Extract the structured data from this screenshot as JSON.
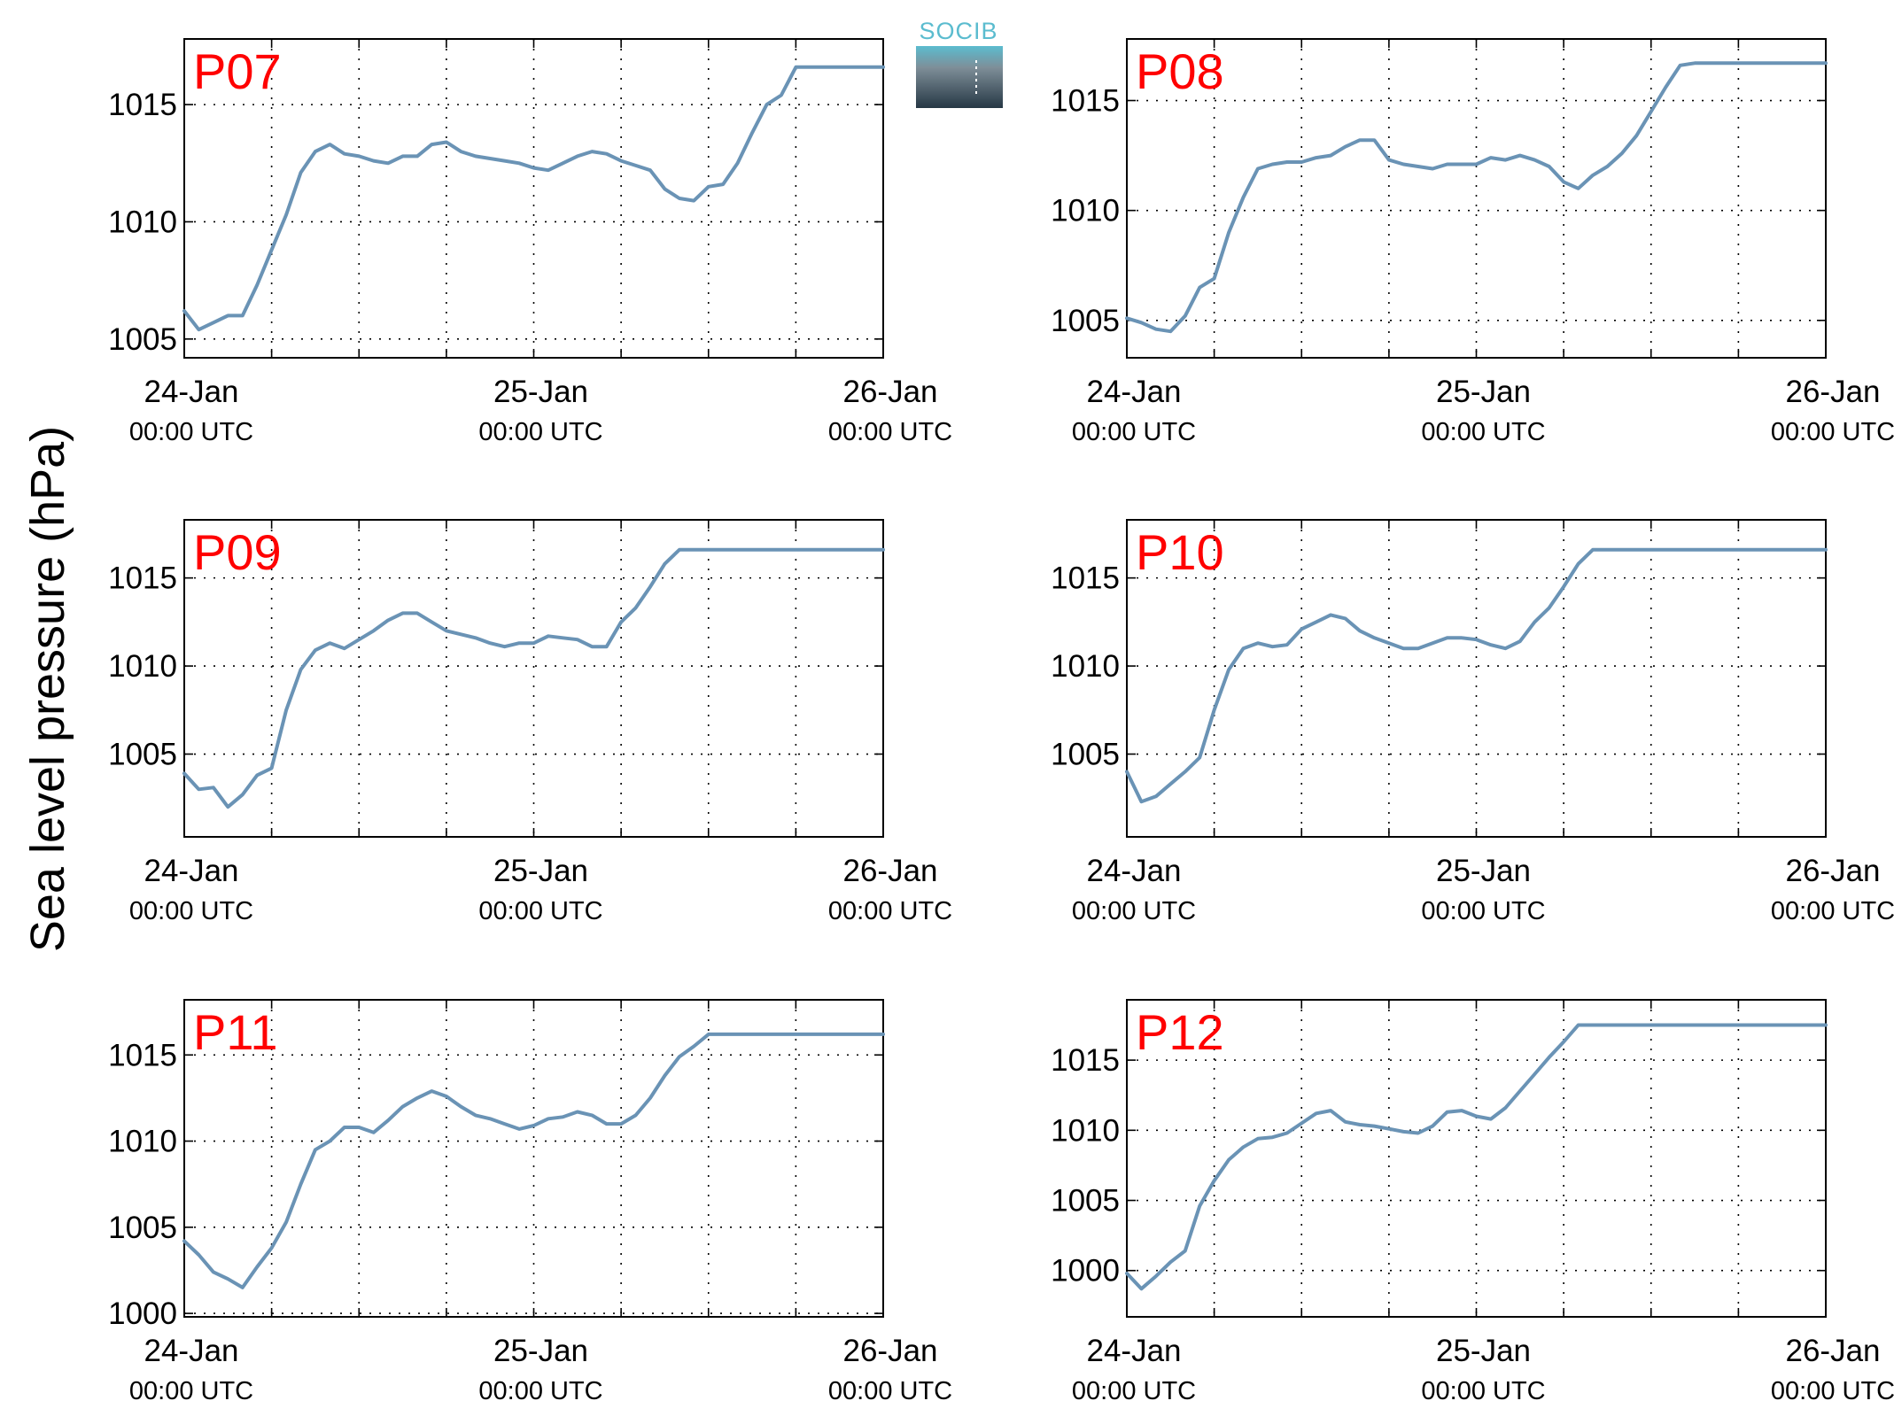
{
  "ylabel": "Sea level pressure (hPa)",
  "logo": {
    "text": "SOCIB",
    "color": "#5bbccf"
  },
  "colors": {
    "line": "#6a93b5",
    "label": "#ff0000",
    "grid": "#000000"
  },
  "x_ticks": [
    {
      "main": "24-Jan",
      "sub": "00:00 UTC"
    },
    {
      "main": "25-Jan",
      "sub": "00:00 UTC"
    },
    {
      "main": "26-Jan",
      "sub": "00:00 UTC"
    }
  ],
  "chart_data": [
    {
      "type": "line",
      "label": "P07",
      "xlim": [
        0,
        48
      ],
      "ylim": [
        1004.2,
        1017.8
      ],
      "yticks": [
        1005,
        1010,
        1015
      ],
      "x": [
        0,
        1,
        2,
        3,
        4,
        5,
        6,
        7,
        8,
        9,
        10,
        11,
        12,
        13,
        14,
        15,
        16,
        17,
        18,
        19,
        20,
        21,
        22,
        23,
        24,
        25,
        26,
        27,
        28,
        29,
        30,
        31,
        32,
        33,
        34,
        35,
        36,
        37,
        38,
        39,
        40,
        41,
        42,
        43,
        44,
        45,
        46,
        47,
        48
      ],
      "y": [
        1006.2,
        1005.4,
        1005.7,
        1006.0,
        1006.0,
        1007.3,
        1008.8,
        1010.3,
        1012.1,
        1013.0,
        1013.3,
        1012.9,
        1012.8,
        1012.6,
        1012.5,
        1012.8,
        1012.8,
        1013.3,
        1013.4,
        1013.0,
        1012.8,
        1012.7,
        1012.6,
        1012.5,
        1012.3,
        1012.2,
        1012.5,
        1012.8,
        1013.0,
        1012.9,
        1012.6,
        1012.4,
        1012.2,
        1011.4,
        1011.0,
        1010.9,
        1011.5,
        1011.6,
        1012.5,
        1013.8,
        1015.0,
        1015.4,
        1016.6,
        1016.6,
        1016.6,
        1016.6,
        1016.6,
        1016.6,
        1016.6
      ]
    },
    {
      "type": "line",
      "label": "P08",
      "xlim": [
        0,
        48
      ],
      "ylim": [
        1003.3,
        1017.8
      ],
      "yticks": [
        1005,
        1010,
        1015
      ],
      "x": [
        0,
        1,
        2,
        3,
        4,
        5,
        6,
        7,
        8,
        9,
        10,
        11,
        12,
        13,
        14,
        15,
        16,
        17,
        18,
        19,
        20,
        21,
        22,
        23,
        24,
        25,
        26,
        27,
        28,
        29,
        30,
        31,
        32,
        33,
        34,
        35,
        36,
        37,
        38,
        39,
        40,
        41,
        42,
        43,
        44,
        45,
        46,
        47,
        48
      ],
      "y": [
        1005.1,
        1004.9,
        1004.6,
        1004.5,
        1005.2,
        1006.5,
        1006.9,
        1009.0,
        1010.6,
        1011.9,
        1012.1,
        1012.2,
        1012.2,
        1012.4,
        1012.5,
        1012.9,
        1013.2,
        1013.2,
        1012.3,
        1012.1,
        1012.0,
        1011.9,
        1012.1,
        1012.1,
        1012.1,
        1012.4,
        1012.3,
        1012.5,
        1012.3,
        1012.0,
        1011.3,
        1011.0,
        1011.6,
        1012.0,
        1012.6,
        1013.4,
        1014.5,
        1015.6,
        1016.6,
        1016.7,
        1016.7,
        1016.7,
        1016.7,
        1016.7,
        1016.7,
        1016.7,
        1016.7,
        1016.7,
        1016.7
      ]
    },
    {
      "type": "line",
      "label": "P09",
      "xlim": [
        0,
        48
      ],
      "ylim": [
        1000.3,
        1018.3
      ],
      "yticks": [
        1005,
        1010,
        1015
      ],
      "x": [
        0,
        1,
        2,
        3,
        4,
        5,
        6,
        7,
        8,
        9,
        10,
        11,
        12,
        13,
        14,
        15,
        16,
        17,
        18,
        19,
        20,
        21,
        22,
        23,
        24,
        25,
        26,
        27,
        28,
        29,
        30,
        31,
        32,
        33,
        34,
        35,
        36,
        37,
        38,
        39,
        40,
        41,
        42,
        43,
        44,
        45,
        46,
        47,
        48
      ],
      "y": [
        1003.9,
        1003.0,
        1003.1,
        1002.0,
        1002.7,
        1003.8,
        1004.2,
        1007.5,
        1009.8,
        1010.9,
        1011.3,
        1011.0,
        1011.5,
        1012.0,
        1012.6,
        1013.0,
        1013.0,
        1012.5,
        1012.0,
        1011.8,
        1011.6,
        1011.3,
        1011.1,
        1011.3,
        1011.3,
        1011.7,
        1011.6,
        1011.5,
        1011.1,
        1011.1,
        1012.5,
        1013.3,
        1014.5,
        1015.8,
        1016.6,
        1016.6,
        1016.6,
        1016.6,
        1016.6,
        1016.6,
        1016.6,
        1016.6,
        1016.6,
        1016.6,
        1016.6,
        1016.6,
        1016.6,
        1016.6,
        1016.6
      ]
    },
    {
      "type": "line",
      "label": "P10",
      "xlim": [
        0,
        48
      ],
      "ylim": [
        1000.3,
        1018.3
      ],
      "yticks": [
        1005,
        1010,
        1015
      ],
      "x": [
        0,
        1,
        2,
        3,
        4,
        5,
        6,
        7,
        8,
        9,
        10,
        11,
        12,
        13,
        14,
        15,
        16,
        17,
        18,
        19,
        20,
        21,
        22,
        23,
        24,
        25,
        26,
        27,
        28,
        29,
        30,
        31,
        32,
        33,
        34,
        35,
        36,
        37,
        38,
        39,
        40,
        41,
        42,
        43,
        44,
        45,
        46,
        47,
        48
      ],
      "y": [
        1004.0,
        1002.3,
        1002.6,
        1003.3,
        1004.0,
        1004.8,
        1007.5,
        1009.8,
        1011.0,
        1011.3,
        1011.1,
        1011.2,
        1012.1,
        1012.5,
        1012.9,
        1012.7,
        1012.0,
        1011.6,
        1011.3,
        1011.0,
        1011.0,
        1011.3,
        1011.6,
        1011.6,
        1011.5,
        1011.2,
        1011.0,
        1011.4,
        1012.5,
        1013.3,
        1014.5,
        1015.8,
        1016.6,
        1016.6,
        1016.6,
        1016.6,
        1016.6,
        1016.6,
        1016.6,
        1016.6,
        1016.6,
        1016.6,
        1016.6,
        1016.6,
        1016.6,
        1016.6,
        1016.6,
        1016.6,
        1016.6
      ]
    },
    {
      "type": "line",
      "label": "P11",
      "xlim": [
        0,
        48
      ],
      "ylim": [
        999.8,
        1018.2
      ],
      "yticks": [
        1000,
        1005,
        1010,
        1015
      ],
      "x": [
        0,
        1,
        2,
        3,
        4,
        5,
        6,
        7,
        8,
        9,
        10,
        11,
        12,
        13,
        14,
        15,
        16,
        17,
        18,
        19,
        20,
        21,
        22,
        23,
        24,
        25,
        26,
        27,
        28,
        29,
        30,
        31,
        32,
        33,
        34,
        35,
        36,
        37,
        38,
        39,
        40,
        41,
        42,
        43,
        44,
        45,
        46,
        47,
        48
      ],
      "y": [
        1004.2,
        1003.4,
        1002.4,
        1002.0,
        1001.5,
        1002.7,
        1003.8,
        1005.3,
        1007.5,
        1009.5,
        1010.0,
        1010.8,
        1010.8,
        1010.5,
        1011.2,
        1012.0,
        1012.5,
        1012.9,
        1012.6,
        1012.0,
        1011.5,
        1011.3,
        1011.0,
        1010.7,
        1010.9,
        1011.3,
        1011.4,
        1011.7,
        1011.5,
        1011.0,
        1011.0,
        1011.5,
        1012.5,
        1013.8,
        1014.9,
        1015.5,
        1016.2,
        1016.2,
        1016.2,
        1016.2,
        1016.2,
        1016.2,
        1016.2,
        1016.2,
        1016.2,
        1016.2,
        1016.2,
        1016.2,
        1016.2
      ]
    },
    {
      "type": "line",
      "label": "P12",
      "xlim": [
        0,
        48
      ],
      "ylim": [
        996.7,
        1019.3
      ],
      "yticks": [
        1000,
        1005,
        1010,
        1015
      ],
      "x": [
        0,
        1,
        2,
        3,
        4,
        5,
        6,
        7,
        8,
        9,
        10,
        11,
        12,
        13,
        14,
        15,
        16,
        17,
        18,
        19,
        20,
        21,
        22,
        23,
        24,
        25,
        26,
        27,
        28,
        29,
        30,
        31,
        32,
        33,
        34,
        35,
        36,
        37,
        38,
        39,
        40,
        41,
        42,
        43,
        44,
        45,
        46,
        47,
        48
      ],
      "y": [
        999.8,
        998.7,
        999.6,
        1000.6,
        1001.4,
        1004.6,
        1006.4,
        1007.9,
        1008.8,
        1009.4,
        1009.5,
        1009.8,
        1010.5,
        1011.2,
        1011.4,
        1010.6,
        1010.4,
        1010.3,
        1010.1,
        1009.9,
        1009.8,
        1010.3,
        1011.3,
        1011.4,
        1011.0,
        1010.8,
        1011.6,
        1012.8,
        1014.0,
        1015.2,
        1016.3,
        1017.5,
        1017.5,
        1017.5,
        1017.5,
        1017.5,
        1017.5,
        1017.5,
        1017.5,
        1017.5,
        1017.5,
        1017.5,
        1017.5,
        1017.5,
        1017.5,
        1017.5,
        1017.5,
        1017.5,
        1017.5
      ]
    }
  ]
}
